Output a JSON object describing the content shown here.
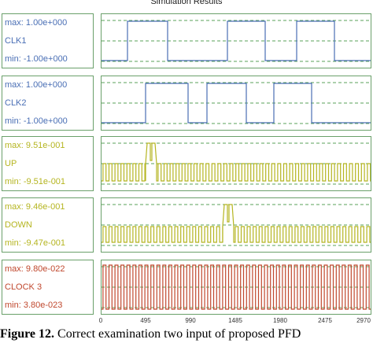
{
  "window": {
    "title": "Simulation Results"
  },
  "signals": [
    {
      "name": "CLK1",
      "max": "max: 1.00e+000",
      "min": "min: -1.00e+000",
      "color": "#4a6fb5"
    },
    {
      "name": "CLK2",
      "max": "max: 1.00e+000",
      "min": "min: -1.00e+000",
      "color": "#4a6fb5"
    },
    {
      "name": "UP",
      "max": "max: 9.51e-001",
      "min": "min: -9.51e-001",
      "color": "#b5b520"
    },
    {
      "name": "DOWN",
      "max": "max: 9.46e-001",
      "min": "min: -9.47e-001",
      "color": "#b5b520"
    },
    {
      "name": "CLOCK 3",
      "max": "max: 9.80e-022",
      "min": "min: 3.80e-023",
      "color": "#c0482e"
    }
  ],
  "axis": {
    "ticks": [
      "0",
      "495",
      "990",
      "1485",
      "1980",
      "2475",
      "2970"
    ]
  },
  "caption": {
    "label": "Figure 12.",
    "text": " Correct examination two input of proposed PFD"
  },
  "colors": {
    "border": "#6aa06a",
    "dash": "#5aa05a"
  }
}
